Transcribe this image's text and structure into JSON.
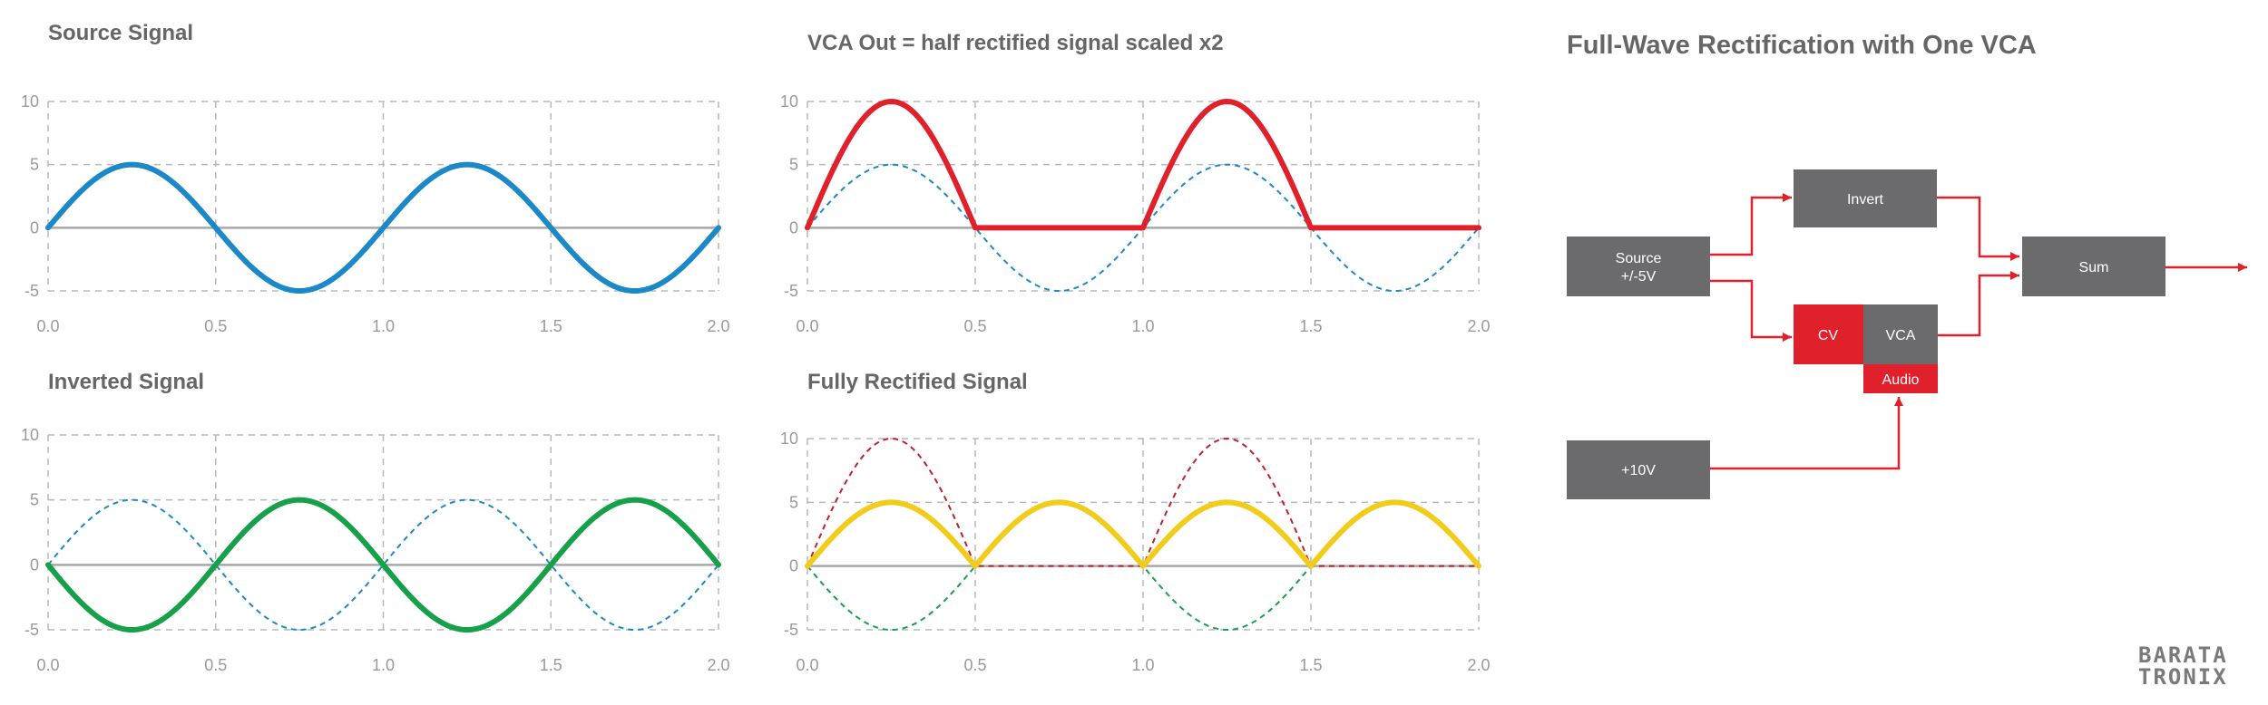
{
  "chart_data": [
    {
      "type": "line",
      "title": "Source Signal",
      "xlim": [
        0,
        2
      ],
      "ylim": [
        -5,
        10
      ],
      "x_ticks": [
        "0.0",
        "0.5",
        "1.0",
        "1.5",
        "2.0"
      ],
      "y_ticks": [
        "10",
        "5",
        "0",
        "-5"
      ],
      "series": [
        {
          "kind": "sine",
          "amplitude": 5,
          "style": "solid",
          "color": "#1b88c8"
        }
      ]
    },
    {
      "type": "line",
      "title": "VCA Out = half rectified signal scaled x2",
      "xlim": [
        0,
        2
      ],
      "ylim": [
        -5,
        10
      ],
      "x_ticks": [
        "0.0",
        "0.5",
        "1.0",
        "1.5",
        "2.0"
      ],
      "y_ticks": [
        "10",
        "5",
        "0",
        "-5"
      ],
      "series": [
        {
          "kind": "sine",
          "amplitude": 5,
          "style": "dashed",
          "color": "#1b88c8"
        },
        {
          "kind": "half-rectified",
          "amplitude": 10,
          "style": "solid",
          "color": "#e0202a"
        }
      ]
    },
    {
      "type": "line",
      "title": "Inverted Signal",
      "xlim": [
        0,
        2
      ],
      "ylim": [
        -5,
        10
      ],
      "x_ticks": [
        "0.0",
        "0.5",
        "1.0",
        "1.5",
        "2.0"
      ],
      "y_ticks": [
        "10",
        "5",
        "0",
        "-5"
      ],
      "series": [
        {
          "kind": "sine",
          "amplitude": 5,
          "style": "dashed",
          "color": "#1b88c8"
        },
        {
          "kind": "sine",
          "amplitude": -5,
          "style": "solid",
          "color": "#16a04a"
        }
      ]
    },
    {
      "type": "line",
      "title": "Fully Rectified Signal",
      "xlim": [
        0,
        2
      ],
      "ylim": [
        -5,
        10
      ],
      "x_ticks": [
        "0.0",
        "0.5",
        "1.0",
        "1.5",
        "2.0"
      ],
      "y_ticks": [
        "10",
        "5",
        "0",
        "-5"
      ],
      "series": [
        {
          "kind": "half-rectified",
          "amplitude": 10,
          "style": "dashed",
          "color": "#c0202a"
        },
        {
          "kind": "sine",
          "amplitude": -5,
          "style": "dashed",
          "color": "#16a04a"
        },
        {
          "kind": "full-rectified",
          "amplitude": 5,
          "style": "solid",
          "color": "#f2cc1a"
        }
      ]
    }
  ],
  "diagram": {
    "title": "Full-Wave Rectification with One VCA",
    "blocks": {
      "source_line1": "Source",
      "source_line2": "+/-5V",
      "invert": "Invert",
      "cv": "CV",
      "vca": "VCA",
      "audio": "Audio",
      "sum": "Sum",
      "plus10": "+10V"
    },
    "colors": {
      "block": "#6b6b6d",
      "accent": "#e0202a"
    }
  },
  "logo": {
    "line1": "BARATA",
    "line2": "TRONIX"
  }
}
